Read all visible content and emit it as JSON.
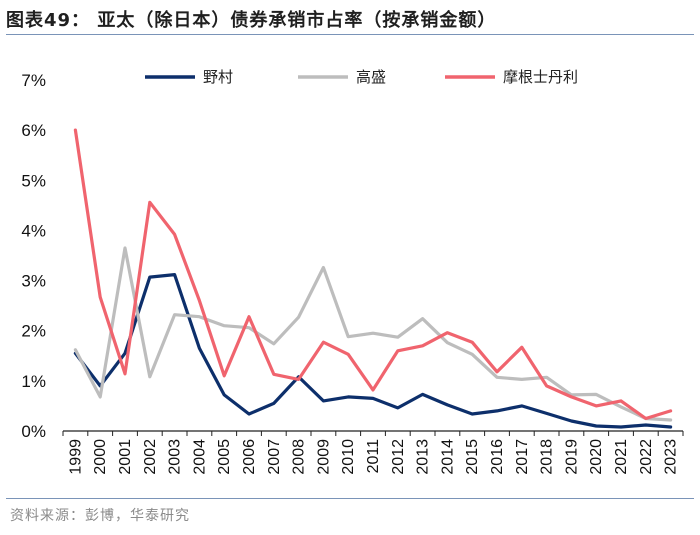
{
  "title": "图表49：  亚太（除日本）债券承销市占率（按承销金额）",
  "source": "资料来源：彭博，华泰研究",
  "chart_data": {
    "type": "line",
    "title": "亚太（除日本）债券承销市占率（按承销金额）",
    "xlabel": "",
    "ylabel": "",
    "ylim": [
      0,
      7
    ],
    "y_ticks": [
      "0%",
      "1%",
      "2%",
      "3%",
      "4%",
      "5%",
      "6%",
      "7%"
    ],
    "y_tick_values": [
      0,
      1,
      2,
      3,
      4,
      5,
      6,
      7
    ],
    "x": [
      "1999",
      "2000",
      "2001",
      "2002",
      "2003",
      "2004",
      "2005",
      "2006",
      "2007",
      "2008",
      "2009",
      "2010",
      "2011",
      "2012",
      "2013",
      "2014",
      "2015",
      "2016",
      "2017",
      "2018",
      "2019",
      "2020",
      "2021",
      "2022",
      "2023"
    ],
    "legend_position": "top",
    "series": [
      {
        "name": "野村",
        "color": "#0d2f6b",
        "values": [
          1.55,
          0.9,
          1.55,
          3.07,
          3.12,
          1.65,
          0.72,
          0.34,
          0.55,
          1.08,
          0.6,
          0.68,
          0.65,
          0.46,
          0.73,
          0.52,
          0.34,
          0.4,
          0.5,
          0.35,
          0.2,
          0.1,
          0.08,
          0.12,
          0.08
        ]
      },
      {
        "name": "高盛",
        "color": "#bdbdbd",
        "values": [
          1.62,
          0.68,
          3.65,
          1.08,
          2.32,
          2.28,
          2.1,
          2.06,
          1.74,
          2.27,
          3.26,
          1.88,
          1.95,
          1.87,
          2.24,
          1.76,
          1.53,
          1.07,
          1.03,
          1.07,
          0.72,
          0.73,
          0.48,
          0.25,
          0.22
        ]
      },
      {
        "name": "摩根士丹利",
        "color": "#f0646e",
        "values": [
          6.0,
          2.67,
          1.14,
          4.56,
          3.92,
          2.6,
          1.1,
          2.28,
          1.13,
          1.03,
          1.77,
          1.53,
          0.82,
          1.6,
          1.7,
          1.96,
          1.77,
          1.18,
          1.67,
          0.9,
          0.68,
          0.5,
          0.6,
          0.25,
          0.4
        ]
      }
    ]
  }
}
